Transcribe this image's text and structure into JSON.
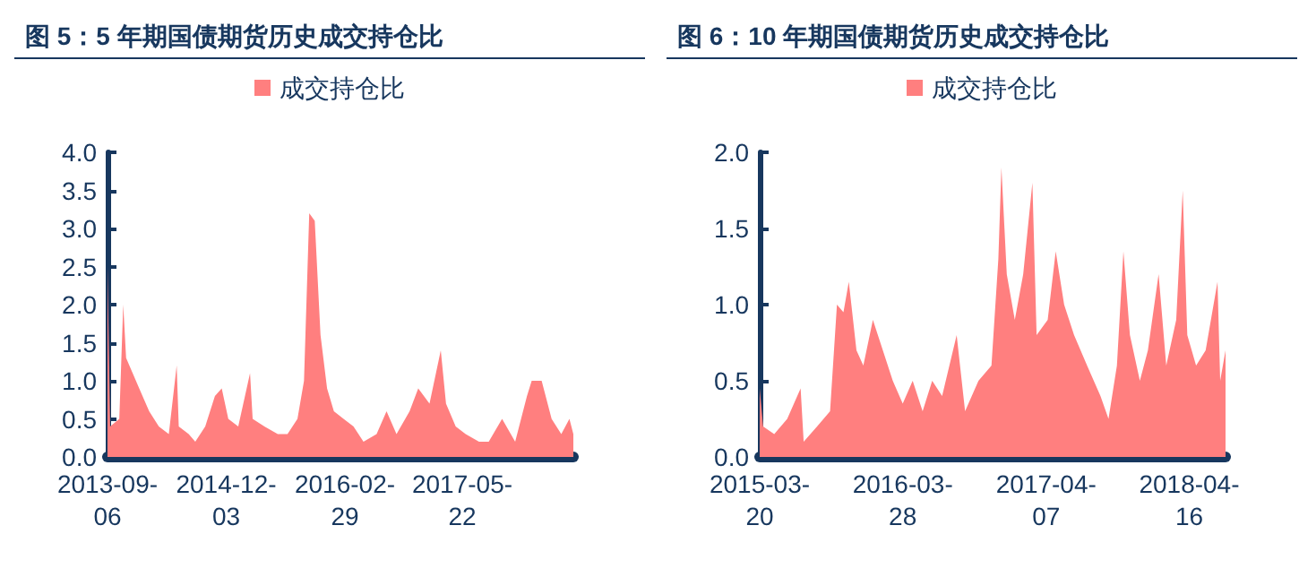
{
  "chart_data": [
    {
      "type": "area",
      "title": "图 5：5 年期国债期货历史成交持仓比",
      "legend": "top",
      "grid": false,
      "marker": "none",
      "xlim": [
        "2013-09-06",
        "2018-07-20"
      ],
      "xticks": [
        "2013-09-06",
        "2014-12-03",
        "2016-02-29",
        "2017-05-22"
      ],
      "ylim": [
        0,
        4
      ],
      "yticks": [
        {
          "value": 0,
          "label": "0.0"
        },
        {
          "value": 0.5,
          "label": "0.5"
        },
        {
          "value": 1,
          "label": "1.0"
        },
        {
          "value": 1.5,
          "label": "1.5"
        },
        {
          "value": 2,
          "label": "2.0"
        },
        {
          "value": 2.5,
          "label": "2.5"
        },
        {
          "value": 3,
          "label": "3.0"
        },
        {
          "value": 3.5,
          "label": "3.5"
        },
        {
          "value": 4,
          "label": "4.0"
        }
      ],
      "x": [
        "2013-09-06",
        "2013-09-16",
        "2013-10-21",
        "2013-11-05",
        "2013-11-16",
        "2013-12-11",
        "2014-01-05",
        "2014-02-12",
        "2014-03-21",
        "2014-04-28",
        "2014-05-28",
        "2014-06-05",
        "2014-07-13",
        "2014-08-07",
        "2014-09-14",
        "2014-10-21",
        "2014-11-16",
        "2014-12-11",
        "2015-01-18",
        "2015-03-04",
        "2015-03-14",
        "2015-04-28",
        "2015-06-18",
        "2015-07-25",
        "2015-09-01",
        "2015-09-26",
        "2015-10-16",
        "2015-11-06",
        "2015-11-28",
        "2015-12-23",
        "2016-01-18",
        "2016-02-24",
        "2016-04-02",
        "2016-05-10",
        "2016-06-29",
        "2016-08-06",
        "2016-09-13",
        "2016-11-02",
        "2016-12-05",
        "2017-01-17",
        "2017-03-01",
        "2017-03-21",
        "2017-04-27",
        "2017-06-04",
        "2017-07-25",
        "2017-08-31",
        "2017-10-21",
        "2017-12-10",
        "2018-01-24",
        "2018-02-11",
        "2018-03-21",
        "2018-04-28",
        "2018-06-04",
        "2018-07-05",
        "2018-07-20"
      ],
      "series": [
        {
          "name": "成交持仓比",
          "color": "#ff7f7f",
          "values": [
            2.5,
            0.4,
            0.5,
            2.0,
            1.3,
            1.1,
            0.9,
            0.6,
            0.4,
            0.3,
            1.2,
            0.4,
            0.3,
            0.2,
            0.4,
            0.8,
            0.9,
            0.5,
            0.4,
            1.1,
            0.5,
            0.4,
            0.3,
            0.3,
            0.5,
            1.0,
            3.2,
            3.1,
            1.6,
            0.9,
            0.6,
            0.5,
            0.4,
            0.2,
            0.3,
            0.6,
            0.3,
            0.6,
            0.9,
            0.7,
            1.4,
            0.7,
            0.4,
            0.3,
            0.2,
            0.2,
            0.5,
            0.2,
            0.8,
            1.0,
            1.0,
            0.5,
            0.3,
            0.5,
            0.3
          ]
        }
      ]
    },
    {
      "type": "area",
      "title": "图 6：10 年期国债期货历史成交持仓比",
      "legend": "top",
      "grid": false,
      "marker": "none",
      "xlim": [
        "2015-03-20",
        "2018-07-20"
      ],
      "xticks": [
        "2015-03-20",
        "2016-03-28",
        "2017-04-07",
        "2018-04-16"
      ],
      "ylim": [
        0,
        2
      ],
      "yticks": [
        {
          "value": 0,
          "label": "0.0"
        },
        {
          "value": 0.5,
          "label": "0.5"
        },
        {
          "value": 1,
          "label": "1.0"
        },
        {
          "value": 1.5,
          "label": "1.5"
        },
        {
          "value": 2,
          "label": "2.0"
        }
      ],
      "x": [
        "2015-03-20",
        "2015-03-29",
        "2015-04-27",
        "2015-05-31",
        "2015-07-05",
        "2015-07-13",
        "2015-08-17",
        "2015-09-20",
        "2015-10-08",
        "2015-10-25",
        "2015-11-08",
        "2015-11-28",
        "2015-12-16",
        "2016-01-10",
        "2016-02-05",
        "2016-03-02",
        "2016-03-28",
        "2016-04-23",
        "2016-05-19",
        "2016-06-13",
        "2016-07-09",
        "2016-08-16",
        "2016-09-07",
        "2016-10-12",
        "2016-11-15",
        "2016-12-03",
        "2016-12-11",
        "2016-12-25",
        "2017-01-15",
        "2017-02-06",
        "2017-03-02",
        "2017-03-13",
        "2017-04-11",
        "2017-05-02",
        "2017-05-24",
        "2017-06-19",
        "2017-07-23",
        "2017-08-27",
        "2017-09-17",
        "2017-10-09",
        "2017-10-26",
        "2017-11-12",
        "2017-12-08",
        "2017-12-29",
        "2018-01-26",
        "2018-02-15",
        "2018-03-13",
        "2018-03-30",
        "2018-04-11",
        "2018-05-04",
        "2018-05-29",
        "2018-06-29",
        "2018-07-06",
        "2018-07-20"
      ],
      "series": [
        {
          "name": "成交持仓比",
          "color": "#ff7f7f",
          "values": [
            0.45,
            0.2,
            0.15,
            0.25,
            0.45,
            0.1,
            0.2,
            0.3,
            1.0,
            0.95,
            1.15,
            0.7,
            0.6,
            0.9,
            0.7,
            0.5,
            0.35,
            0.5,
            0.3,
            0.5,
            0.4,
            0.8,
            0.3,
            0.5,
            0.6,
            1.3,
            1.9,
            1.2,
            0.9,
            1.2,
            1.8,
            0.8,
            0.9,
            1.35,
            1.0,
            0.8,
            0.6,
            0.4,
            0.25,
            0.6,
            1.35,
            0.8,
            0.5,
            0.7,
            1.2,
            0.6,
            0.9,
            1.75,
            0.8,
            0.6,
            0.7,
            1.15,
            0.5,
            0.7
          ]
        }
      ]
    }
  ]
}
